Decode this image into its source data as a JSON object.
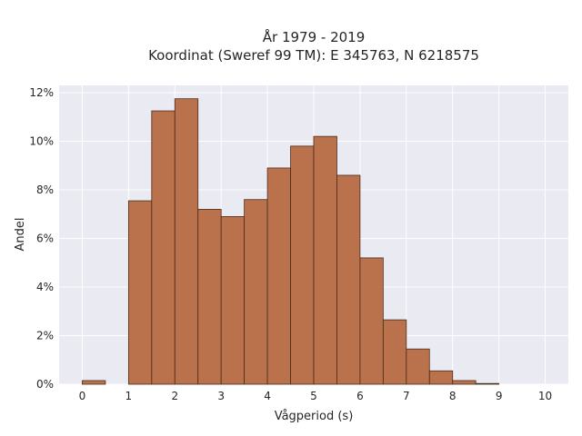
{
  "chart_data": {
    "type": "bar",
    "title_line1": "År 1979 - 2019",
    "title_line2": "Koordinat (Sweref 99 TM): E 345763, N 6218575",
    "xlabel": "Vågperiod (s)",
    "ylabel": "Andel",
    "xlim": [
      -0.5,
      10.5
    ],
    "ylim": [
      0,
      12.3
    ],
    "x_ticks": [
      0,
      1,
      2,
      3,
      4,
      5,
      6,
      7,
      8,
      9,
      10
    ],
    "x_tick_labels": [
      "0",
      "1",
      "2",
      "3",
      "4",
      "5",
      "6",
      "7",
      "8",
      "9",
      "10"
    ],
    "y_ticks": [
      0,
      2,
      4,
      6,
      8,
      10,
      12
    ],
    "y_tick_labels": [
      "0%",
      "2%",
      "4%",
      "6%",
      "8%",
      "10%",
      "12%"
    ],
    "bin_width": 0.5,
    "bins_start": [
      0,
      0.5,
      1,
      1.5,
      2,
      2.5,
      3,
      3.5,
      4,
      4.5,
      5,
      5.5,
      6,
      6.5,
      7,
      7.5,
      8,
      8.5,
      9,
      9.5
    ],
    "values": [
      0.15,
      0,
      7.55,
      11.25,
      11.75,
      7.2,
      6.9,
      7.6,
      8.9,
      9.8,
      10.2,
      8.6,
      5.2,
      2.65,
      1.45,
      0.55,
      0.15,
      0.03,
      0,
      0
    ],
    "grid": true,
    "colors": {
      "bar_fill": "#b5653b",
      "bar_edge": "#4a2c1c",
      "plot_bg": "#eaeaf2",
      "grid": "#ffffff",
      "text": "#262626"
    }
  }
}
